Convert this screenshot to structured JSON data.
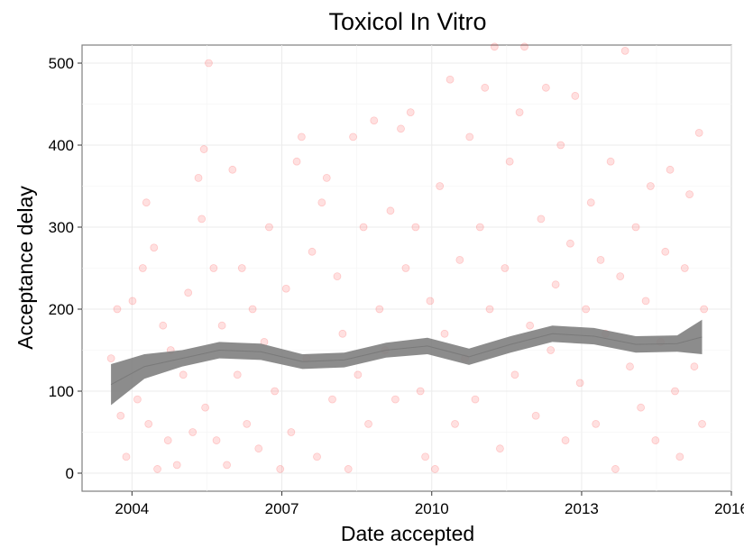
{
  "chart_data": {
    "type": "scatter",
    "title": "Toxicol In Vitro",
    "xlabel": "Date accepted",
    "ylabel": "Acceptance delay",
    "x_is_date": true,
    "xlim": [
      "2003-01-01",
      "2016-01-01"
    ],
    "ylim": [
      -22,
      522
    ],
    "x_ticks": [
      "2004",
      "2007",
      "2010",
      "2013",
      "2016"
    ],
    "x_tick_dates": [
      "2004-01-01",
      "2007-01-01",
      "2010-01-01",
      "2013-01-01",
      "2016-01-01"
    ],
    "y_ticks": [
      0,
      100,
      200,
      300,
      400,
      500
    ],
    "grid": true,
    "point_color": "#ff0000",
    "point_opacity": 0.12,
    "smooth_color": "#808080",
    "smooth": {
      "x": [
        "2003-08-01",
        "2004-04-01",
        "2005-01-01",
        "2005-10-01",
        "2006-08-01",
        "2007-06-01",
        "2008-04-01",
        "2009-02-01",
        "2009-12-01",
        "2010-10-01",
        "2011-08-01",
        "2012-06-01",
        "2013-04-01",
        "2014-02-01",
        "2014-12-01",
        "2015-06-01"
      ],
      "y": [
        108,
        130,
        140,
        150,
        148,
        136,
        138,
        150,
        155,
        142,
        157,
        170,
        167,
        157,
        158,
        166
      ],
      "lower": [
        83,
        115,
        130,
        140,
        138,
        127,
        129,
        141,
        145,
        132,
        147,
        160,
        157,
        147,
        148,
        145
      ],
      "upper": [
        133,
        145,
        150,
        160,
        158,
        145,
        147,
        159,
        165,
        152,
        167,
        180,
        177,
        167,
        168,
        187
      ]
    },
    "points": [
      [
        "2003-08-01",
        140
      ],
      [
        "2003-09-15",
        200
      ],
      [
        "2003-10-10",
        70
      ],
      [
        "2003-11-20",
        20
      ],
      [
        "2004-01-05",
        210
      ],
      [
        "2004-02-10",
        90
      ],
      [
        "2004-03-20",
        250
      ],
      [
        "2004-04-15",
        330
      ],
      [
        "2004-05-01",
        60
      ],
      [
        "2004-06-10",
        275
      ],
      [
        "2004-07-05",
        5
      ],
      [
        "2004-08-15",
        180
      ],
      [
        "2004-09-20",
        40
      ],
      [
        "2004-10-10",
        150
      ],
      [
        "2004-11-25",
        10
      ],
      [
        "2005-01-10",
        120
      ],
      [
        "2005-02-15",
        220
      ],
      [
        "2005-03-20",
        50
      ],
      [
        "2005-05-01",
        360
      ],
      [
        "2005-05-25",
        310
      ],
      [
        "2005-06-10",
        395
      ],
      [
        "2005-06-20",
        80
      ],
      [
        "2005-07-15",
        500
      ],
      [
        "2005-08-20",
        250
      ],
      [
        "2005-09-10",
        40
      ],
      [
        "2005-10-20",
        180
      ],
      [
        "2005-11-25",
        10
      ],
      [
        "2006-01-05",
        370
      ],
      [
        "2006-02-10",
        120
      ],
      [
        "2006-03-15",
        250
      ],
      [
        "2006-04-20",
        60
      ],
      [
        "2006-06-01",
        200
      ],
      [
        "2006-07-15",
        30
      ],
      [
        "2006-08-25",
        160
      ],
      [
        "2006-09-30",
        300
      ],
      [
        "2006-11-10",
        100
      ],
      [
        "2006-12-20",
        5
      ],
      [
        "2007-02-01",
        225
      ],
      [
        "2007-03-10",
        50
      ],
      [
        "2007-04-20",
        380
      ],
      [
        "2007-05-25",
        410
      ],
      [
        "2007-06-30",
        140
      ],
      [
        "2007-08-10",
        270
      ],
      [
        "2007-09-15",
        20
      ],
      [
        "2007-10-20",
        330
      ],
      [
        "2007-11-25",
        360
      ],
      [
        "2008-01-05",
        90
      ],
      [
        "2008-02-10",
        240
      ],
      [
        "2008-03-20",
        170
      ],
      [
        "2008-05-01",
        5
      ],
      [
        "2008-06-05",
        410
      ],
      [
        "2008-07-10",
        120
      ],
      [
        "2008-08-20",
        300
      ],
      [
        "2008-09-25",
        60
      ],
      [
        "2008-11-05",
        430
      ],
      [
        "2008-12-15",
        200
      ],
      [
        "2009-01-25",
        150
      ],
      [
        "2009-03-05",
        320
      ],
      [
        "2009-04-10",
        90
      ],
      [
        "2009-05-20",
        420
      ],
      [
        "2009-06-25",
        250
      ],
      [
        "2009-07-30",
        440
      ],
      [
        "2009-09-05",
        300
      ],
      [
        "2009-10-10",
        100
      ],
      [
        "2009-11-15",
        20
      ],
      [
        "2009-12-20",
        210
      ],
      [
        "2010-01-25",
        5
      ],
      [
        "2010-03-01",
        350
      ],
      [
        "2010-04-05",
        170
      ],
      [
        "2010-05-15",
        480
      ],
      [
        "2010-06-20",
        60
      ],
      [
        "2010-07-25",
        260
      ],
      [
        "2010-09-01",
        140
      ],
      [
        "2010-10-05",
        410
      ],
      [
        "2010-11-15",
        90
      ],
      [
        "2010-12-20",
        300
      ],
      [
        "2011-01-25",
        470
      ],
      [
        "2011-03-01",
        200
      ],
      [
        "2011-04-05",
        520
      ],
      [
        "2011-05-15",
        30
      ],
      [
        "2011-06-20",
        250
      ],
      [
        "2011-07-25",
        380
      ],
      [
        "2011-09-01",
        120
      ],
      [
        "2011-10-05",
        440
      ],
      [
        "2011-11-10",
        520
      ],
      [
        "2011-12-20",
        180
      ],
      [
        "2012-02-01",
        70
      ],
      [
        "2012-03-10",
        310
      ],
      [
        "2012-04-15",
        470
      ],
      [
        "2012-05-20",
        150
      ],
      [
        "2012-06-25",
        230
      ],
      [
        "2012-08-01",
        400
      ],
      [
        "2012-09-05",
        40
      ],
      [
        "2012-10-10",
        280
      ],
      [
        "2012-11-15",
        460
      ],
      [
        "2012-12-20",
        110
      ],
      [
        "2013-02-01",
        200
      ],
      [
        "2013-03-10",
        330
      ],
      [
        "2013-04-15",
        60
      ],
      [
        "2013-05-20",
        260
      ],
      [
        "2013-06-25",
        170
      ],
      [
        "2013-08-01",
        380
      ],
      [
        "2013-09-05",
        5
      ],
      [
        "2013-10-10",
        240
      ],
      [
        "2013-11-15",
        515
      ],
      [
        "2013-12-20",
        130
      ],
      [
        "2014-02-01",
        300
      ],
      [
        "2014-03-10",
        80
      ],
      [
        "2014-04-15",
        210
      ],
      [
        "2014-05-20",
        350
      ],
      [
        "2014-06-25",
        40
      ],
      [
        "2014-08-01",
        160
      ],
      [
        "2014-09-05",
        270
      ],
      [
        "2014-10-10",
        370
      ],
      [
        "2014-11-15",
        100
      ],
      [
        "2014-12-20",
        20
      ],
      [
        "2015-01-25",
        250
      ],
      [
        "2015-03-01",
        340
      ],
      [
        "2015-04-05",
        130
      ],
      [
        "2015-05-10",
        415
      ],
      [
        "2015-06-01",
        60
      ],
      [
        "2015-06-15",
        200
      ]
    ]
  }
}
